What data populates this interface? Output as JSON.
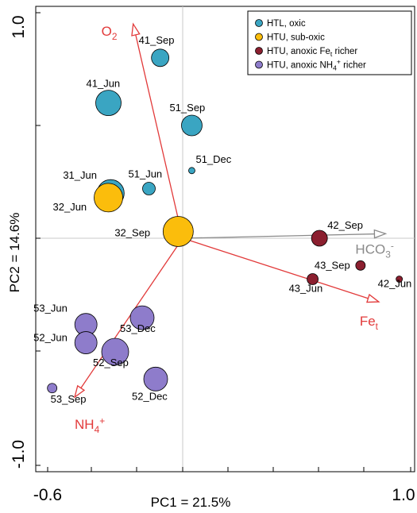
{
  "chart_data": {
    "type": "scatter",
    "title": "",
    "xlabel": "PC1 = 21.5%",
    "ylabel": "PC2 = 14.6%",
    "xlim": [
      -0.6,
      1.0
    ],
    "ylim": [
      -1.0,
      1.0
    ],
    "x_ticks": [
      "-0.6",
      "1.0"
    ],
    "y_ticks": [
      "1.0",
      "-1.0"
    ],
    "grid": false,
    "legend_position": "top-right",
    "groups": [
      {
        "key": "htl_oxic",
        "label_parts": [
          "HTL, oxic"
        ],
        "color": "#3aa5c2"
      },
      {
        "key": "htu_suboxic",
        "label_parts": [
          "HTU, sub-oxic"
        ],
        "color": "#fbbd0c"
      },
      {
        "key": "htu_anoxic_fe",
        "label_parts": [
          "HTU, anoxic Fe",
          "t",
          " richer"
        ],
        "color": "#8b1f2f"
      },
      {
        "key": "htu_anoxic_nh4",
        "label_parts": [
          "HTU, anoxic NH",
          "4",
          "+",
          " richer"
        ],
        "color": "#8e7ccb"
      }
    ],
    "points": [
      {
        "label": "41_Sep",
        "group": "htl_oxic",
        "x": -0.1,
        "y": 0.8,
        "size": 11
      },
      {
        "label": "41_Jun",
        "group": "htl_oxic",
        "x": -0.33,
        "y": 0.6,
        "size": 16
      },
      {
        "label": "51_Sep",
        "group": "htl_oxic",
        "x": 0.04,
        "y": 0.5,
        "size": 13
      },
      {
        "label": "51_Dec",
        "group": "htl_oxic",
        "x": 0.04,
        "y": 0.3,
        "size": 4
      },
      {
        "label": "31_Jun",
        "group": "htl_oxic",
        "x": -0.32,
        "y": 0.2,
        "size": 17
      },
      {
        "label": "51_Jun",
        "group": "htl_oxic",
        "x": -0.15,
        "y": 0.22,
        "size": 8
      },
      {
        "label": "32_Jun",
        "group": "htu_suboxic",
        "x": -0.33,
        "y": 0.18,
        "size": 18
      },
      {
        "label": "32_Sep",
        "group": "htu_suboxic",
        "x": -0.02,
        "y": 0.03,
        "size": 19
      },
      {
        "label": "42_Sep",
        "group": "htu_anoxic_fe",
        "x": 0.6,
        "y": 0.0,
        "size": 10
      },
      {
        "label": "43_Sep",
        "group": "htu_anoxic_fe",
        "x": 0.78,
        "y": -0.12,
        "size": 6
      },
      {
        "label": "43_Jun",
        "group": "htu_anoxic_fe",
        "x": 0.57,
        "y": -0.18,
        "size": 7
      },
      {
        "label": "42_Jun",
        "group": "htu_anoxic_fe",
        "x": 0.95,
        "y": -0.18,
        "size": 4
      },
      {
        "label": "53_Jun",
        "group": "htu_anoxic_nh4",
        "x": -0.43,
        "y": -0.38,
        "size": 14
      },
      {
        "label": "52_Jun",
        "group": "htu_anoxic_nh4",
        "x": -0.43,
        "y": -0.46,
        "size": 14
      },
      {
        "label": "52_Sep",
        "group": "htu_anoxic_nh4",
        "x": -0.3,
        "y": -0.5,
        "size": 17
      },
      {
        "label": "53_Dec",
        "group": "htu_anoxic_nh4",
        "x": -0.18,
        "y": -0.35,
        "size": 15
      },
      {
        "label": "52_Dec",
        "group": "htu_anoxic_nh4",
        "x": -0.12,
        "y": -0.62,
        "size": 15
      },
      {
        "label": "53_Sep",
        "group": "htu_anoxic_nh4",
        "x": -0.58,
        "y": -0.66,
        "size": 6
      }
    ],
    "vectors": [
      {
        "key": "o2",
        "label_parts": [
          "O",
          "2",
          ""
        ],
        "color": "#e23a3a",
        "x": -0.22,
        "y": 0.95
      },
      {
        "key": "hco3",
        "label_parts": [
          "HCO",
          "3",
          "-"
        ],
        "color": "#8a8a8a",
        "x": 0.89,
        "y": 0.02
      },
      {
        "key": "fet",
        "label_parts": [
          "Fe",
          "t",
          ""
        ],
        "color": "#e23a3a",
        "x": 0.86,
        "y": -0.28
      },
      {
        "key": "nh4",
        "label_parts": [
          "NH",
          "4",
          "+"
        ],
        "color": "#e23a3a",
        "x": -0.48,
        "y": -0.7
      }
    ]
  }
}
